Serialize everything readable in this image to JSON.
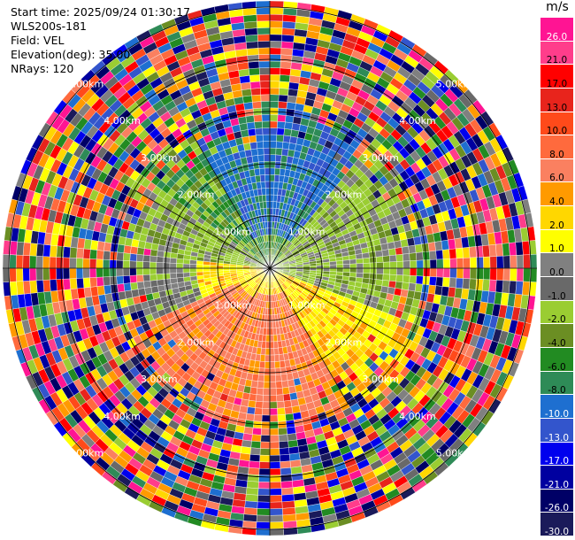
{
  "info": {
    "start_time": "Start time: 2025/09/24 01:30:17",
    "instrument": "WLS200s-181",
    "field": "Field: VEL",
    "elevation": "Elevation(deg): 35.00",
    "nrays": "NRays: 120"
  },
  "ppi": {
    "rays": 120,
    "gates": 40,
    "ring_labels": [
      "1.00km",
      "2.00km",
      "3.00km",
      "4.00km",
      "5.00km"
    ],
    "ring_ranges_km": [
      1,
      2,
      3,
      4,
      5
    ]
  },
  "colorbar": {
    "unit": "m/s",
    "tick_labels": [
      "26.0",
      "21.0",
      "17.0",
      "13.0",
      "10.0",
      "8.0",
      "6.0",
      "4.0",
      "2.0",
      "1.0",
      "0.0",
      "-1.0",
      "-2.0",
      "-4.0",
      "-6.0",
      "-8.0",
      "-10.0",
      "-13.0",
      "-17.0",
      "-21.0",
      "-26.0",
      "-30.0"
    ],
    "colors": [
      "#ff1493",
      "#ff3d8b",
      "#ff0000",
      "#e8241c",
      "#ff4a1a",
      "#ff6a3d",
      "#fa8060",
      "#ff9a00",
      "#ffd700",
      "#ffff00",
      "#808080",
      "#696969",
      "#9acd32",
      "#6b8e23",
      "#228b22",
      "#2e8b57",
      "#1e6fd0",
      "#3355cc",
      "#0000ee",
      "#0000a0",
      "#000066",
      "#1a1a5a"
    ]
  }
}
